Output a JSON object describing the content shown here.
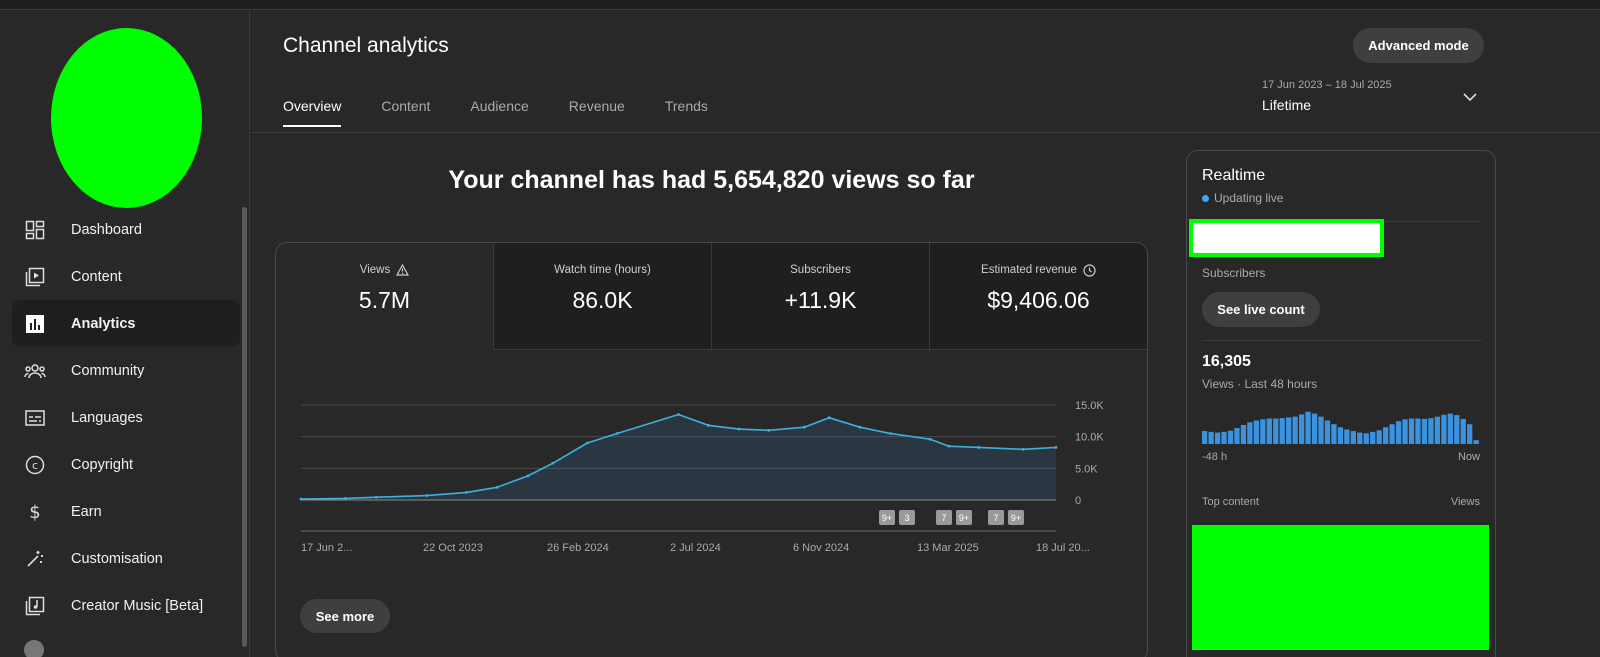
{
  "header": {
    "title": "Channel analytics",
    "advanced_mode": "Advanced mode",
    "date_range": "17 Jun 2023 – 18 Jul 2025",
    "date_label": "Lifetime"
  },
  "tabs": [
    {
      "label": "Overview",
      "active": true
    },
    {
      "label": "Content",
      "active": false
    },
    {
      "label": "Audience",
      "active": false
    },
    {
      "label": "Revenue",
      "active": false
    },
    {
      "label": "Trends",
      "active": false
    }
  ],
  "sidebar": {
    "items": [
      {
        "label": "Dashboard",
        "icon": "dashboard-icon",
        "active": false
      },
      {
        "label": "Content",
        "icon": "content-icon",
        "active": false
      },
      {
        "label": "Analytics",
        "icon": "analytics-icon",
        "active": true
      },
      {
        "label": "Community",
        "icon": "community-icon",
        "active": false
      },
      {
        "label": "Languages",
        "icon": "languages-icon",
        "active": false
      },
      {
        "label": "Copyright",
        "icon": "copyright-icon",
        "active": false
      },
      {
        "label": "Earn",
        "icon": "earn-icon",
        "active": false
      },
      {
        "label": "Customisation",
        "icon": "customisation-icon",
        "active": false
      },
      {
        "label": "Creator Music [Beta]",
        "icon": "creator-music-icon",
        "active": false
      }
    ]
  },
  "headline": "Your channel has had 5,654,820 views so far",
  "metrics": [
    {
      "label": "Views",
      "value": "5.7M",
      "icon": "warning-icon"
    },
    {
      "label": "Watch time (hours)",
      "value": "86.0K"
    },
    {
      "label": "Subscribers",
      "value": "+11.9K"
    },
    {
      "label": "Estimated revenue",
      "value": "$9,406.06",
      "icon": "clock-icon"
    }
  ],
  "chart_data": {
    "type": "area",
    "title": "",
    "xlabel": "",
    "ylabel": "",
    "ylim": [
      0,
      15000
    ],
    "yticks": [
      "15.0K",
      "10.0K",
      "5.0K",
      "0"
    ],
    "x_tick_labels": [
      "17 Jun 2...",
      "22 Oct 2023",
      "26 Feb 2024",
      "2 Jul 2024",
      "6 Nov 2024",
      "13 Mar 2025",
      "18 Jul 20..."
    ],
    "x": [
      "17 Jun 2023",
      "1 Aug 2023",
      "1 Sep 2023",
      "22 Oct 2023",
      "1 Dec 2023",
      "1 Jan 2024",
      "1 Feb 2024",
      "26 Feb 2024",
      "1 Apr 2024",
      "1 May 2024",
      "2 Jul 2024",
      "1 Aug 2024",
      "1 Sep 2024",
      "1 Oct 2024",
      "6 Nov 2024",
      "1 Dec 2024",
      "1 Jan 2025",
      "1 Feb 2025",
      "13 Mar 2025",
      "1 Apr 2025",
      "1 May 2025",
      "15 Jun 2025",
      "18 Jul 2025"
    ],
    "series": [
      {
        "values": [
          150,
          250,
          450,
          700,
          1200,
          2000,
          3800,
          5800,
          9000,
          10500,
          13500,
          11800,
          11200,
          11000,
          11500,
          13000,
          11500,
          10500,
          9600,
          8500,
          8300,
          8000,
          8300
        ]
      }
    ],
    "annotations": [
      "9+",
      "3",
      "7",
      "9+",
      "7",
      "9+"
    ],
    "grid": true
  },
  "see_more": "See more",
  "realtime": {
    "title": "Realtime",
    "updating": "Updating live",
    "subscribers_label": "Subscribers",
    "live_count_button": "See live count",
    "views_value": "16,305",
    "views_label": "Views · Last 48 hours",
    "axis_left": "-48 h",
    "axis_right": "Now",
    "top_content": "Top content",
    "top_content_views": "Views",
    "bars": [
      0.34,
      0.32,
      0.3,
      0.32,
      0.35,
      0.42,
      0.5,
      0.57,
      0.62,
      0.65,
      0.67,
      0.67,
      0.68,
      0.7,
      0.72,
      0.78,
      0.85,
      0.8,
      0.72,
      0.62,
      0.52,
      0.44,
      0.38,
      0.34,
      0.3,
      0.28,
      0.32,
      0.36,
      0.44,
      0.52,
      0.6,
      0.65,
      0.67,
      0.67,
      0.66,
      0.68,
      0.72,
      0.77,
      0.8,
      0.76,
      0.66,
      0.52,
      0.1
    ]
  }
}
